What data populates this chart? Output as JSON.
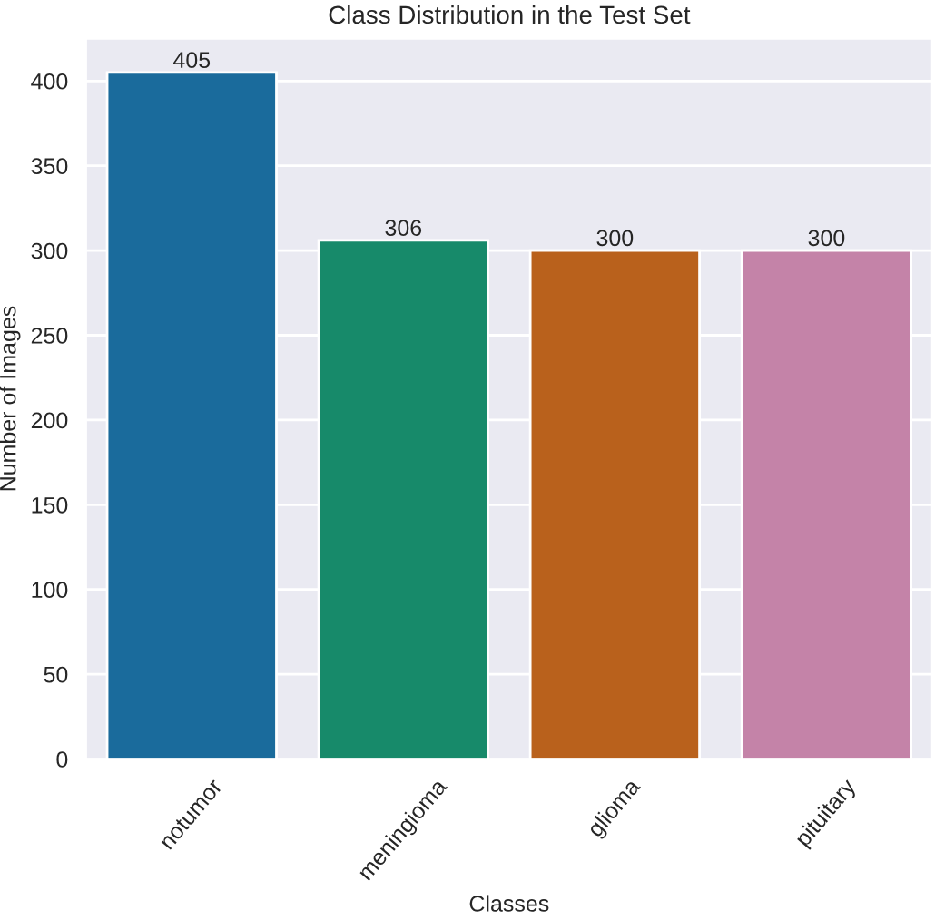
{
  "chart_data": {
    "type": "bar",
    "title": "Class Distribution in the Test Set",
    "xlabel": "Classes",
    "ylabel": "Number of Images",
    "categories": [
      "notumor",
      "meningioma",
      "glioma",
      "pituitary"
    ],
    "values": [
      405,
      306,
      300,
      300
    ],
    "colors": [
      "#1a6b9c",
      "#178a6a",
      "#b9611c",
      "#c483a8"
    ],
    "ylim": [
      0,
      425
    ],
    "yticks": [
      0,
      50,
      100,
      150,
      200,
      250,
      300,
      350,
      400
    ],
    "grid": "y",
    "data_labels": true
  }
}
